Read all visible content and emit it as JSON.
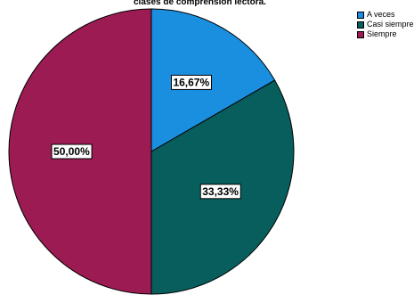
{
  "chart_data": {
    "type": "pie",
    "title": "clases de comprensión lectora.",
    "categories": [
      "A veces",
      "Casi siempre",
      "Siempre"
    ],
    "values": [
      16.67,
      33.33,
      50.0
    ],
    "labels": [
      "16,67%",
      "33,33%",
      "50,00%"
    ],
    "colors": [
      "#1a8fe0",
      "#075e5c",
      "#9b1b52"
    ],
    "legend_position": "top-right",
    "start_angle": "12 o'clock",
    "direction": "clockwise"
  }
}
